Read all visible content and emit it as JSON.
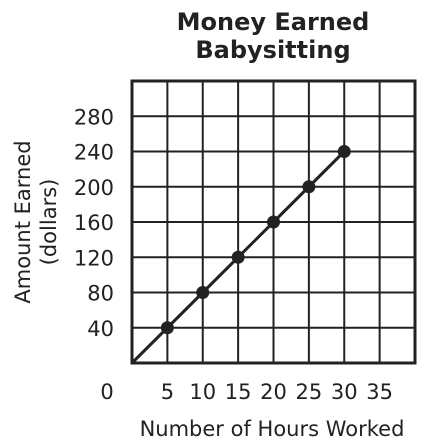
{
  "chart_data": {
    "type": "line",
    "title": [
      "Money Earned",
      "Babysitting"
    ],
    "xlabel": "Number of Hours Worked",
    "ylabel": [
      "Amount Earned",
      "(dollars)"
    ],
    "xlim": [
      0,
      40
    ],
    "ylim": [
      0,
      320
    ],
    "x_ticks": [
      0,
      5,
      10,
      15,
      20,
      25,
      30,
      35
    ],
    "x_tick_labels": [
      "0",
      "5",
      "10",
      "15",
      "20",
      "25",
      "30",
      "35"
    ],
    "y_ticks": [
      40,
      80,
      120,
      160,
      200,
      240,
      280
    ],
    "y_tick_labels": [
      "40",
      "80",
      "120",
      "160",
      "200",
      "240",
      "280"
    ],
    "grid": true,
    "series": [
      {
        "x": [
          0,
          5,
          10,
          15,
          20,
          25,
          30
        ],
        "y": [
          0,
          40,
          80,
          120,
          160,
          200,
          240
        ],
        "markers": [
          false,
          true,
          true,
          true,
          true,
          true,
          true
        ]
      }
    ],
    "colors": {
      "line": "#222222",
      "grid": "#222222",
      "text": "#222222"
    }
  }
}
